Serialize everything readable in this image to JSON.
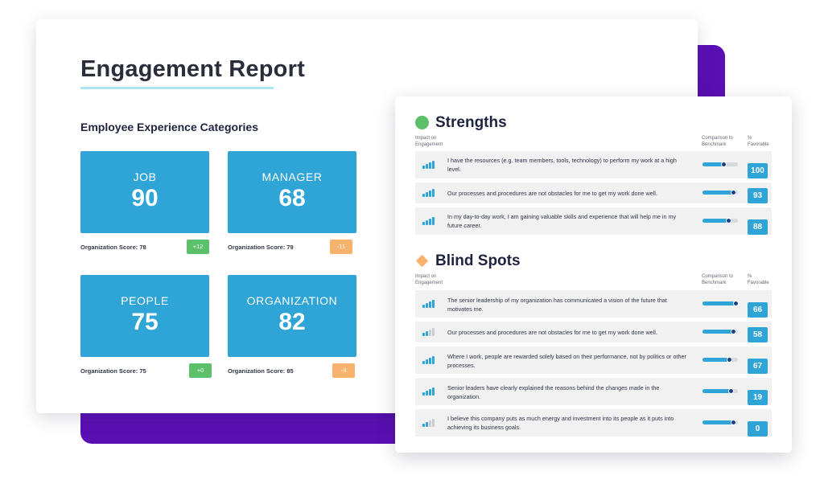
{
  "colors": {
    "accent_blue": "#2fa4d6",
    "purple": "#5a0fb4",
    "positive_green": "#5cbf6a",
    "negative_orange": "#f7b36d",
    "strength_icon": "#5cbf6a",
    "blind_spot_icon": "#f7b36d"
  },
  "report": {
    "title": "Engagement Report",
    "section_title": "Employee Experience Categories",
    "categories": [
      {
        "name": "JOB",
        "score": "90",
        "org_score": "Organization Score: 78",
        "delta": "+12",
        "delta_status": "positive"
      },
      {
        "name": "MANAGER",
        "score": "68",
        "org_score": "Organization Score: 79",
        "delta": "-11",
        "delta_status": "negative"
      },
      {
        "name": "PEOPLE",
        "score": "75",
        "org_score": "Organization Score: 75",
        "delta": "+0",
        "delta_status": "positive"
      },
      {
        "name": "ORGANIZATION",
        "score": "82",
        "org_score": "Organization Score: 85",
        "delta": "-3",
        "delta_status": "negative"
      }
    ]
  },
  "survey": {
    "columns": {
      "impact": "Impact on Engagement",
      "comparison": "Comparison to Benchmark",
      "favorable": "% Favorable"
    },
    "strengths": {
      "heading": "Strengths",
      "icon": "green-circle-icon",
      "items": [
        {
          "text": "I have the resources (e.g. team members, tools, technology) to perform my work at a high level.",
          "impact_level": 4,
          "benchmark": 0.62,
          "favorable": "100"
        },
        {
          "text": "Our processes and procedures are not obstacles for me to get my work done well.",
          "impact_level": 4,
          "benchmark": 0.88,
          "favorable": "93"
        },
        {
          "text": "In my day-to-day work, I am gaining valuable skills and experience that will help me in my future career.",
          "impact_level": 4,
          "benchmark": 0.74,
          "favorable": "88"
        }
      ]
    },
    "blind_spots": {
      "heading": "Blind Spots",
      "icon": "orange-diamond-icon",
      "items": [
        {
          "text": "The senior leadership of my organization has communicated a vision of the future that motivates me.",
          "impact_level": 4,
          "benchmark": 0.96,
          "favorable": "66"
        },
        {
          "text": "Our processes and procedures are not obstacles for me to get my work done well.",
          "impact_level": 2,
          "benchmark": 0.88,
          "favorable": "58"
        },
        {
          "text": "Where I work, people are rewarded solely based on their performance, not by politics or other processes.",
          "impact_level": 4,
          "benchmark": 0.78,
          "favorable": "67"
        },
        {
          "text": "Senior leaders have clearly explained the reasons behind the changes made in the organization.",
          "impact_level": 4,
          "benchmark": 0.82,
          "favorable": "19"
        },
        {
          "text": "I believe this company puts as much energy and investment into its people as it puts into achieving its business goals.",
          "impact_level": 2,
          "benchmark": 0.88,
          "favorable": "0"
        }
      ]
    }
  }
}
